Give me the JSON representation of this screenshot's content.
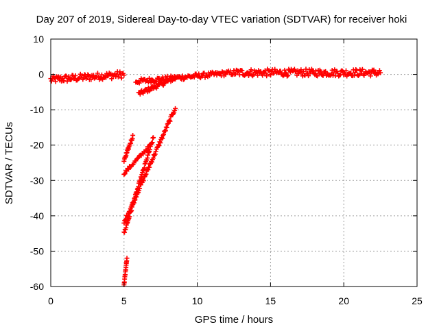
{
  "chart_data": {
    "type": "scatter",
    "title": "Day 207 of 2019, Sidereal Day-to-day VTEC variation (SDTVAR) for receiver hoki",
    "xlabel": "GPS time / hours",
    "ylabel": "SDTVAR / TECUs",
    "xlim": [
      0,
      25
    ],
    "ylim": [
      -60,
      10
    ],
    "xticks": [
      0,
      5,
      10,
      15,
      20,
      25
    ],
    "yticks": [
      10,
      0,
      -10,
      -20,
      -30,
      -40,
      -50,
      -60
    ],
    "xtick_labels": [
      "0",
      "5",
      "10",
      "15",
      "20",
      "25"
    ],
    "ytick_labels": [
      "10",
      "0",
      "-10",
      "-20",
      "-30",
      "-40",
      "-50",
      "-60"
    ],
    "grid": true,
    "marker": "+",
    "color": "#ff0000",
    "series": [
      {
        "segments": [
          {
            "from": [
              0.0,
              -1.5
            ],
            "to": [
              5.0,
              0.0
            ],
            "points": 90,
            "jitter": 1.0
          },
          {
            "from": [
              6.0,
              -5.5
            ],
            "to": [
              8.5,
              -1.0
            ],
            "points": 50,
            "jitter": 0.6
          },
          {
            "from": [
              5.8,
              -2.0
            ],
            "to": [
              12.5,
              0.5
            ],
            "points": 110,
            "jitter": 0.7
          },
          {
            "from": [
              12.5,
              0.5
            ],
            "to": [
              22.5,
              0.5
            ],
            "points": 180,
            "jitter": 1.0
          },
          {
            "from": [
              5.0,
              -24.5
            ],
            "to": [
              5.6,
              -17.5
            ],
            "points": 22,
            "jitter": 0.4
          },
          {
            "from": [
              5.0,
              -28.0
            ],
            "to": [
              6.8,
              -20.0
            ],
            "points": 30,
            "jitter": 0.4
          },
          {
            "from": [
              5.0,
              -42.0
            ],
            "to": [
              8.5,
              -9.5
            ],
            "points": 80,
            "jitter": 0.5
          },
          {
            "from": [
              5.0,
              -45.0
            ],
            "to": [
              7.0,
              -18.0
            ],
            "points": 60,
            "jitter": 0.5
          },
          {
            "from": [
              5.0,
              -59.5
            ],
            "to": [
              5.2,
              -52.0
            ],
            "points": 16,
            "jitter": 0.3
          }
        ]
      }
    ]
  }
}
